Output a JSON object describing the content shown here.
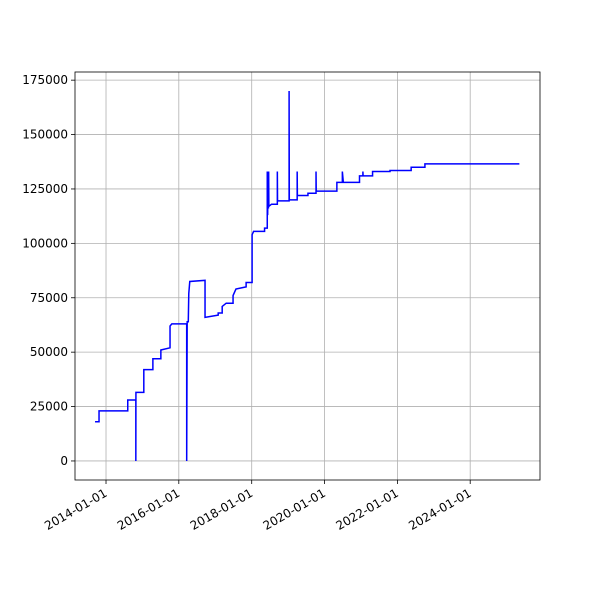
{
  "chart_data": {
    "type": "line",
    "color": "blue",
    "grid": true,
    "x": [
      "2013-09-13",
      "2013-10-23",
      "2013-10-23",
      "2014-08-07",
      "2014-08-07",
      "2014-10-27",
      "2014-10-27",
      "2014-10-28",
      "2015-01-15",
      "2015-01-15",
      "2015-04-16",
      "2015-04-16",
      "2015-07-05",
      "2015-07-05",
      "2015-10-05",
      "2015-10-05",
      "2015-10-23",
      "2016-03-20",
      "2016-03-20",
      "2016-03-22",
      "2016-03-25",
      "2016-04-05",
      "2016-04-10",
      "2016-04-20",
      "2016-09-20",
      "2016-09-20",
      "2017-01-30",
      "2017-01-30",
      "2017-03-11",
      "2017-03-11",
      "2017-04-20",
      "2017-06-28",
      "2017-06-28",
      "2017-07-27",
      "2017-11-06",
      "2017-11-06",
      "2018-01-05",
      "2018-01-05",
      "2018-01-20",
      "2018-05-10",
      "2018-05-10",
      "2018-06-06",
      "2018-06-06",
      "2018-06-10",
      "2018-06-14",
      "2018-06-18",
      "2018-06-20",
      "2018-06-22",
      "2018-07-19",
      "2018-09-15",
      "2018-09-15",
      "2018-09-17",
      "2019-01-11",
      "2019-01-11",
      "2019-01-13",
      "2019-04-02",
      "2019-04-02",
      "2019-04-04",
      "2019-07-19",
      "2019-07-19",
      "2019-10-08",
      "2019-10-08",
      "2019-10-10",
      "2020-05-04",
      "2020-05-04",
      "2020-06-28",
      "2020-06-28",
      "2020-07-08",
      "2020-12-17",
      "2020-12-17",
      "2021-01-20",
      "2021-01-20",
      "2021-01-22",
      "2021-04-27",
      "2021-04-27",
      "2021-10-19",
      "2021-10-19",
      "2022-05-19",
      "2022-05-19",
      "2022-10-04",
      "2022-10-04",
      "2025-05-08"
    ],
    "values": [
      18000,
      18000,
      23000,
      23000,
      28000,
      28000,
      0,
      31500,
      31500,
      42000,
      42000,
      47000,
      47000,
      51000,
      52000,
      62000,
      63000,
      63000,
      0,
      27000,
      64000,
      64000,
      77000,
      82500,
      83000,
      66000,
      67000,
      68000,
      68000,
      71000,
      72500,
      72500,
      76000,
      79000,
      80000,
      82000,
      82000,
      104000,
      105500,
      105500,
      107000,
      107000,
      133000,
      113000,
      133000,
      116000,
      133000,
      117000,
      118000,
      118000,
      133000,
      119500,
      119500,
      170000,
      120000,
      120000,
      133000,
      122000,
      122000,
      123000,
      123000,
      133000,
      124000,
      124000,
      128000,
      128000,
      133000,
      128000,
      128000,
      131000,
      131000,
      133000,
      131000,
      131000,
      133000,
      133000,
      133500,
      133500,
      135000,
      135000,
      136500,
      136500
    ],
    "xlim": [
      "2013-02-24",
      "2025-12-01"
    ],
    "xticks": [
      "2014-01-01",
      "2016-01-01",
      "2018-01-01",
      "2020-01-01",
      "2022-01-01",
      "2024-01-01"
    ],
    "ylim": [
      -8750,
      178750
    ],
    "yticks": [
      0,
      25000,
      50000,
      75000,
      100000,
      125000,
      150000,
      175000
    ]
  }
}
